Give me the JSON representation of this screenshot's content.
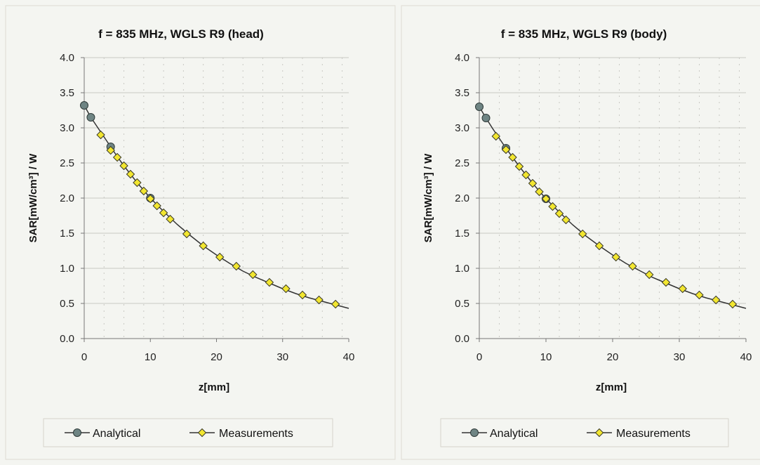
{
  "colors": {
    "background": "#f4f5f1",
    "analytical_marker": "#6f8584",
    "measurement_marker": "#f2e630",
    "line": "#333333"
  },
  "chart_data": [
    {
      "type": "line",
      "title": "f = 835 MHz, WGLS R9 (head)",
      "xlabel": "z[mm]",
      "ylabel": "SAR[mW/cm³] / W",
      "xlim": [
        0,
        40
      ],
      "ylim": [
        0.0,
        4.0
      ],
      "xticks": [
        "0",
        "10",
        "20",
        "30",
        "40"
      ],
      "yticks": [
        "0.0",
        "0.5",
        "1.0",
        "1.5",
        "2.0",
        "2.5",
        "3.0",
        "3.5",
        "4.0"
      ],
      "grid": true,
      "legend": [
        "Analytical",
        "Measurements"
      ],
      "legend_position": "bottom",
      "curve": {
        "x": [
          0,
          1,
          2,
          3,
          4,
          5,
          6,
          7,
          8,
          9,
          10,
          12,
          14,
          16,
          18,
          20,
          22,
          24,
          26,
          28,
          30,
          32,
          34,
          36,
          38,
          40
        ],
        "y": [
          3.32,
          3.15,
          3.01,
          2.87,
          2.73,
          2.59,
          2.46,
          2.34,
          2.22,
          2.11,
          2.0,
          1.81,
          1.63,
          1.47,
          1.32,
          1.19,
          1.07,
          0.96,
          0.87,
          0.79,
          0.71,
          0.64,
          0.58,
          0.53,
          0.48,
          0.43
        ]
      },
      "series": [
        {
          "name": "Analytical",
          "x": [
            0,
            1,
            4,
            10
          ],
          "y": [
            3.32,
            3.15,
            2.73,
            2.0
          ]
        },
        {
          "name": "Measurements",
          "x": [
            2.5,
            4,
            5,
            6,
            7,
            8,
            9,
            10,
            11,
            12,
            13,
            15.5,
            18,
            20.5,
            23,
            25.5,
            28,
            30.5,
            33,
            35.5,
            38
          ],
          "y": [
            2.9,
            2.68,
            2.58,
            2.46,
            2.34,
            2.22,
            2.1,
            1.99,
            1.89,
            1.79,
            1.7,
            1.49,
            1.32,
            1.16,
            1.03,
            0.91,
            0.8,
            0.71,
            0.62,
            0.55,
            0.49
          ]
        }
      ]
    },
    {
      "type": "line",
      "title": "f = 835 MHz, WGLS R9 (body)",
      "xlabel": "z[mm]",
      "ylabel": "SAR[mW/cm³] / W",
      "xlim": [
        0,
        40
      ],
      "ylim": [
        0.0,
        4.0
      ],
      "xticks": [
        "0",
        "10",
        "20",
        "30",
        "40"
      ],
      "yticks": [
        "0.0",
        "0.5",
        "1.0",
        "1.5",
        "2.0",
        "2.5",
        "3.0",
        "3.5",
        "4.0"
      ],
      "grid": true,
      "legend": [
        "Analytical",
        "Measurements"
      ],
      "legend_position": "bottom",
      "curve": {
        "x": [
          0,
          1,
          2,
          3,
          4,
          5,
          6,
          7,
          8,
          9,
          10,
          12,
          14,
          16,
          18,
          20,
          22,
          24,
          26,
          28,
          30,
          32,
          34,
          36,
          38,
          40
        ],
        "y": [
          3.3,
          3.14,
          2.99,
          2.85,
          2.71,
          2.58,
          2.45,
          2.33,
          2.21,
          2.1,
          1.99,
          1.8,
          1.62,
          1.46,
          1.32,
          1.19,
          1.07,
          0.97,
          0.87,
          0.79,
          0.71,
          0.64,
          0.58,
          0.53,
          0.48,
          0.43
        ]
      },
      "series": [
        {
          "name": "Analytical",
          "x": [
            0,
            1,
            4,
            10
          ],
          "y": [
            3.3,
            3.14,
            2.71,
            1.99
          ]
        },
        {
          "name": "Measurements",
          "x": [
            2.5,
            4,
            5,
            6,
            7,
            8,
            9,
            10,
            11,
            12,
            13,
            15.5,
            18,
            20.5,
            23,
            25.5,
            28,
            30.5,
            33,
            35.5,
            38
          ],
          "y": [
            2.88,
            2.69,
            2.58,
            2.45,
            2.33,
            2.21,
            2.09,
            1.99,
            1.88,
            1.78,
            1.69,
            1.49,
            1.32,
            1.16,
            1.03,
            0.91,
            0.8,
            0.71,
            0.62,
            0.55,
            0.49
          ]
        }
      ]
    }
  ]
}
